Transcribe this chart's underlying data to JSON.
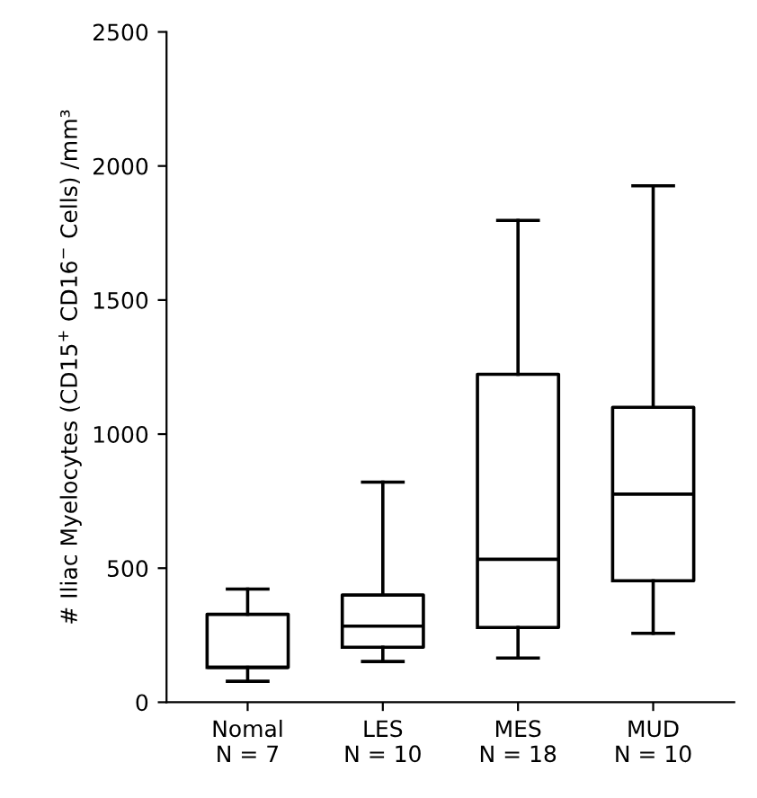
{
  "chart_data": {
    "type": "box",
    "ylabel": "# Iliac Myelocytes (CD15$^{+}$ CD16$^{−}$ Cells) /mm³",
    "categories": [
      "Nomal\nN = 7",
      "LES\nN = 10",
      "MES\nN = 18",
      "MUD\nN = 10"
    ],
    "boxes": [
      {
        "low": 78,
        "q1": 130,
        "median": 130,
        "q3": 328,
        "high": 422
      },
      {
        "low": 152,
        "q1": 205,
        "median": 284,
        "q3": 400,
        "high": 821
      },
      {
        "low": 165,
        "q1": 279,
        "median": 533,
        "q3": 1223,
        "high": 1797
      },
      {
        "low": 257,
        "q1": 453,
        "median": 776,
        "q3": 1100,
        "high": 1926
      }
    ],
    "ylim": [
      0,
      2500
    ],
    "yticks": [
      0,
      500,
      1000,
      1500,
      2000,
      2500
    ],
    "grid": false
  }
}
